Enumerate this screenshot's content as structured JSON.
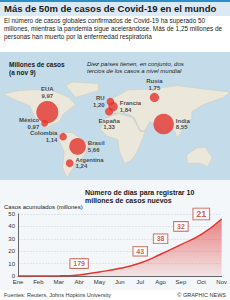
{
  "header": {
    "title": "Más de 50m de casos de Covid-19 en el mundo",
    "text": "El número de casos globales confirmados de Covid-19 ha superado 50 millones, mientras la pandemia sigue acelerándose. Más de 1,25 millones de personas han muerto por la enfermedad respiratoria"
  },
  "chart_data": [
    {
      "type": "bubble_map",
      "title": "Millones de casos (a nov 9)",
      "subtitle": "Diez países tienen, en conjunto, dos tercios de los casos a nivel mundial",
      "categories": [
        "Francia",
        "Rusia",
        "RU",
        "EUA",
        "México",
        "Colombia",
        "Brasil",
        "Argentina",
        "India",
        "España"
      ],
      "values": [
        1.84,
        1.75,
        1.2,
        9.97,
        0.97,
        1.14,
        5.66,
        1.24,
        8.55,
        1.33
      ],
      "value_labels": [
        "1,84",
        "1,75",
        "1,20",
        "9,97",
        "0,97",
        "1,14",
        "5,66",
        "1,24",
        "8,55",
        "1,33"
      ],
      "color": "#e3342f",
      "data_labels": true
    },
    {
      "type": "area",
      "title": "Número de días para registrar 10 millones de casos nuevos",
      "ylabel": "Casos acumulados (millones)",
      "categories": [
        "Ene",
        "Feb",
        "Mar",
        "Abr",
        "May",
        "Jun",
        "Jul",
        "Ago",
        "Sep",
        "Oct",
        "Nov"
      ],
      "values": [
        0,
        0.01,
        0.09,
        0.9,
        3.3,
        6.2,
        10.5,
        17.5,
        25.3,
        33.5,
        46
      ],
      "ylim": [
        0,
        50
      ],
      "yticks": [
        0,
        10,
        20,
        30,
        40,
        50
      ],
      "grid": true,
      "color": "#e3342f",
      "milestones": {
        "cases": [
          10,
          20,
          30,
          40,
          50
        ],
        "days": [
          179,
          43,
          38,
          32,
          21
        ]
      }
    }
  ],
  "footer": {
    "source": "Fuentes: Reuters, Johns Hopkins University",
    "credit": "© GRAPHIC NEWS"
  }
}
